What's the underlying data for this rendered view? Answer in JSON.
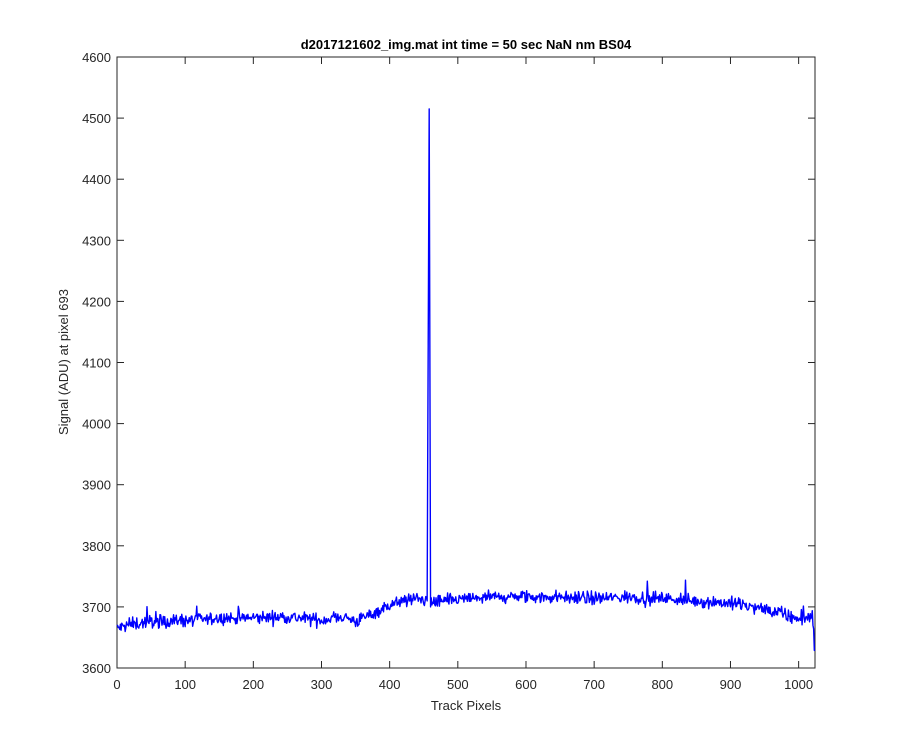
{
  "chart_data": {
    "type": "line",
    "title": "d2017121602_img.mat int time = 50 sec  NaN nm BS04",
    "xlabel": "Track Pixels",
    "ylabel": "Signal (ADU) at pixel 693",
    "xlim": [
      0,
      1024
    ],
    "ylim": [
      3600,
      4600
    ],
    "xticks": [
      0,
      100,
      200,
      300,
      400,
      500,
      600,
      700,
      800,
      900,
      1000
    ],
    "yticks": [
      3600,
      3700,
      3800,
      3900,
      4000,
      4100,
      4200,
      4300,
      4400,
      4500,
      4600
    ],
    "grid": false,
    "series": [
      {
        "color": "#0000ff",
        "x": [
          0,
          25,
          50,
          100,
          150,
          200,
          250,
          300,
          330,
          350,
          380,
          400,
          430,
          455,
          458,
          460,
          462,
          470,
          500,
          550,
          600,
          650,
          700,
          750,
          800,
          850,
          900,
          950,
          1000,
          1020,
          1024
        ],
        "y": [
          3665,
          3672,
          3676,
          3678,
          3681,
          3682,
          3684,
          3678,
          3685,
          3676,
          3692,
          3704,
          3712,
          3714,
          4515,
          3700,
          3710,
          3708,
          3712,
          3716,
          3716,
          3716,
          3714,
          3716,
          3714,
          3710,
          3706,
          3696,
          3680,
          3685,
          3625
        ],
        "noise_amplitude": 12
      }
    ]
  }
}
